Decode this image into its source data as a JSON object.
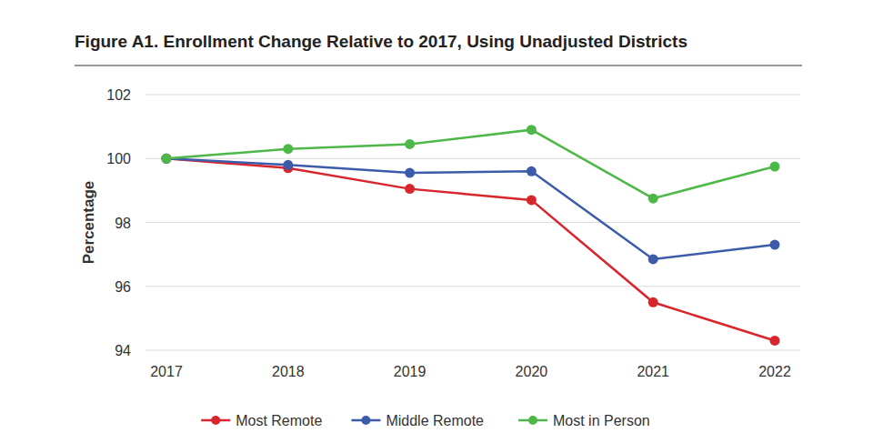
{
  "chart_data": {
    "type": "line",
    "title": "Figure A1. Enrollment Change Relative to 2017, Using Unadjusted Districts",
    "y_label": "Percentage",
    "categories": [
      "2017",
      "2018",
      "2019",
      "2020",
      "2021",
      "2022"
    ],
    "series": [
      {
        "name": "Most Remote",
        "color": "#d8262c",
        "marker": "circle",
        "values": [
          100,
          99.7,
          99.05,
          98.7,
          95.5,
          94.3
        ]
      },
      {
        "name": "Middle Remote",
        "color": "#3c5ba9",
        "marker": "circle",
        "values": [
          100,
          99.8,
          99.55,
          99.6,
          96.85,
          97.3
        ]
      },
      {
        "name": "Most in Person",
        "color": "#4db848",
        "marker": "circle",
        "values": [
          100,
          100.3,
          100.45,
          100.9,
          98.75,
          99.75
        ]
      }
    ],
    "ylim": [
      94,
      102
    ],
    "yticks": [
      94,
      96,
      98,
      100,
      102
    ],
    "grid": true,
    "legend": "bottom"
  }
}
